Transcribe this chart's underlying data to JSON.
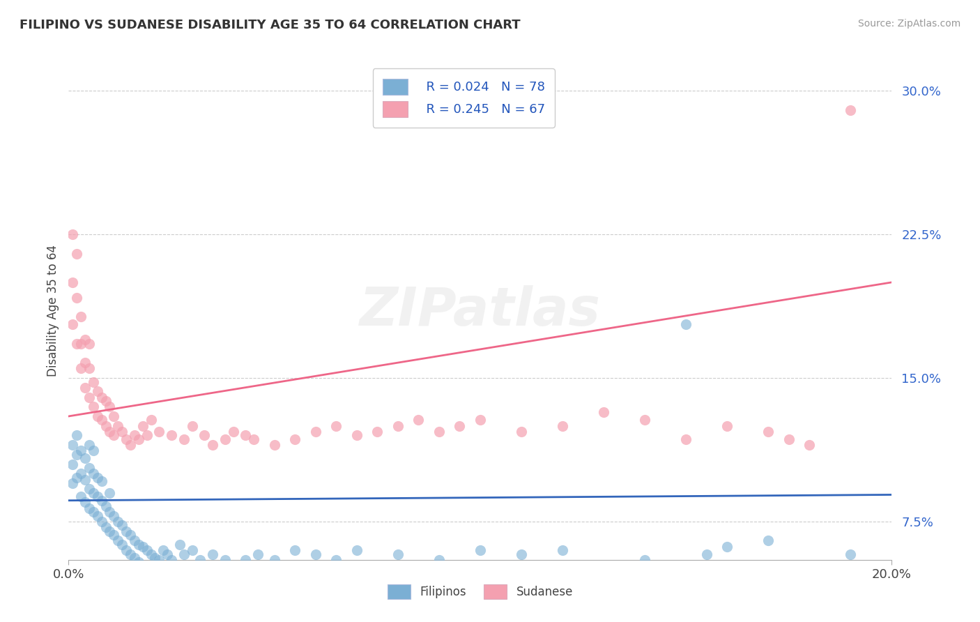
{
  "title": "FILIPINO VS SUDANESE DISABILITY AGE 35 TO 64 CORRELATION CHART",
  "source": "Source: ZipAtlas.com",
  "ylabel_label": "Disability Age 35 to 64",
  "xlim": [
    0.0,
    0.2
  ],
  "ylim": [
    0.055,
    0.315
  ],
  "yticks": [
    0.075,
    0.15,
    0.225,
    0.3
  ],
  "ytick_labels": [
    "7.5%",
    "15.0%",
    "22.5%",
    "30.0%"
  ],
  "xticks": [
    0.0,
    0.2
  ],
  "xtick_labels": [
    "0.0%",
    "20.0%"
  ],
  "legend_r1": "R = 0.024",
  "legend_n1": "N = 78",
  "legend_r2": "R = 0.245",
  "legend_n2": "N = 67",
  "color_filipino": "#7BAFD4",
  "color_sudanese": "#F4A0B0",
  "color_filipino_line": "#3366BB",
  "color_sudanese_line": "#EE6688",
  "watermark": "ZIPatlas",
  "background_color": "#FFFFFF",
  "grid_color": "#CCCCCC",
  "filipino_trend_x0": 0.0,
  "filipino_trend_y0": 0.086,
  "filipino_trend_x1": 0.2,
  "filipino_trend_y1": 0.089,
  "sudanese_trend_x0": 0.0,
  "sudanese_trend_y0": 0.13,
  "sudanese_trend_x1": 0.2,
  "sudanese_trend_y1": 0.2,
  "filipino_x": [
    0.001,
    0.001,
    0.001,
    0.002,
    0.002,
    0.002,
    0.003,
    0.003,
    0.003,
    0.004,
    0.004,
    0.004,
    0.005,
    0.005,
    0.005,
    0.005,
    0.006,
    0.006,
    0.006,
    0.006,
    0.007,
    0.007,
    0.007,
    0.008,
    0.008,
    0.008,
    0.009,
    0.009,
    0.01,
    0.01,
    0.01,
    0.011,
    0.011,
    0.012,
    0.012,
    0.013,
    0.013,
    0.014,
    0.014,
    0.015,
    0.015,
    0.016,
    0.016,
    0.017,
    0.017,
    0.018,
    0.019,
    0.02,
    0.021,
    0.022,
    0.023,
    0.024,
    0.025,
    0.027,
    0.028,
    0.03,
    0.032,
    0.035,
    0.038,
    0.04,
    0.043,
    0.046,
    0.05,
    0.055,
    0.06,
    0.065,
    0.07,
    0.08,
    0.09,
    0.1,
    0.11,
    0.12,
    0.14,
    0.15,
    0.155,
    0.16,
    0.17,
    0.19
  ],
  "filipino_y": [
    0.095,
    0.105,
    0.115,
    0.098,
    0.11,
    0.12,
    0.088,
    0.1,
    0.112,
    0.085,
    0.097,
    0.108,
    0.082,
    0.092,
    0.103,
    0.115,
    0.08,
    0.09,
    0.1,
    0.112,
    0.078,
    0.088,
    0.098,
    0.075,
    0.086,
    0.096,
    0.072,
    0.083,
    0.07,
    0.08,
    0.09,
    0.068,
    0.078,
    0.065,
    0.075,
    0.063,
    0.073,
    0.06,
    0.07,
    0.058,
    0.068,
    0.056,
    0.065,
    0.054,
    0.063,
    0.062,
    0.06,
    0.058,
    0.056,
    0.055,
    0.06,
    0.058,
    0.055,
    0.063,
    0.058,
    0.06,
    0.055,
    0.058,
    0.055,
    0.052,
    0.055,
    0.058,
    0.055,
    0.06,
    0.058,
    0.055,
    0.06,
    0.058,
    0.055,
    0.06,
    0.058,
    0.06,
    0.055,
    0.178,
    0.058,
    0.062,
    0.065,
    0.058
  ],
  "sudanese_x": [
    0.001,
    0.001,
    0.001,
    0.002,
    0.002,
    0.002,
    0.003,
    0.003,
    0.003,
    0.004,
    0.004,
    0.004,
    0.005,
    0.005,
    0.005,
    0.006,
    0.006,
    0.007,
    0.007,
    0.008,
    0.008,
    0.009,
    0.009,
    0.01,
    0.01,
    0.011,
    0.011,
    0.012,
    0.013,
    0.014,
    0.015,
    0.016,
    0.017,
    0.018,
    0.019,
    0.02,
    0.022,
    0.025,
    0.028,
    0.03,
    0.033,
    0.035,
    0.038,
    0.04,
    0.043,
    0.045,
    0.05,
    0.055,
    0.06,
    0.065,
    0.07,
    0.075,
    0.08,
    0.085,
    0.09,
    0.095,
    0.1,
    0.11,
    0.12,
    0.13,
    0.14,
    0.15,
    0.16,
    0.17,
    0.175,
    0.18,
    0.19
  ],
  "sudanese_y": [
    0.225,
    0.2,
    0.178,
    0.215,
    0.192,
    0.168,
    0.155,
    0.168,
    0.182,
    0.158,
    0.145,
    0.17,
    0.14,
    0.155,
    0.168,
    0.135,
    0.148,
    0.13,
    0.143,
    0.128,
    0.14,
    0.125,
    0.138,
    0.122,
    0.135,
    0.12,
    0.13,
    0.125,
    0.122,
    0.118,
    0.115,
    0.12,
    0.118,
    0.125,
    0.12,
    0.128,
    0.122,
    0.12,
    0.118,
    0.125,
    0.12,
    0.115,
    0.118,
    0.122,
    0.12,
    0.118,
    0.115,
    0.118,
    0.122,
    0.125,
    0.12,
    0.122,
    0.125,
    0.128,
    0.122,
    0.125,
    0.128,
    0.122,
    0.125,
    0.132,
    0.128,
    0.118,
    0.125,
    0.122,
    0.118,
    0.115,
    0.29
  ]
}
